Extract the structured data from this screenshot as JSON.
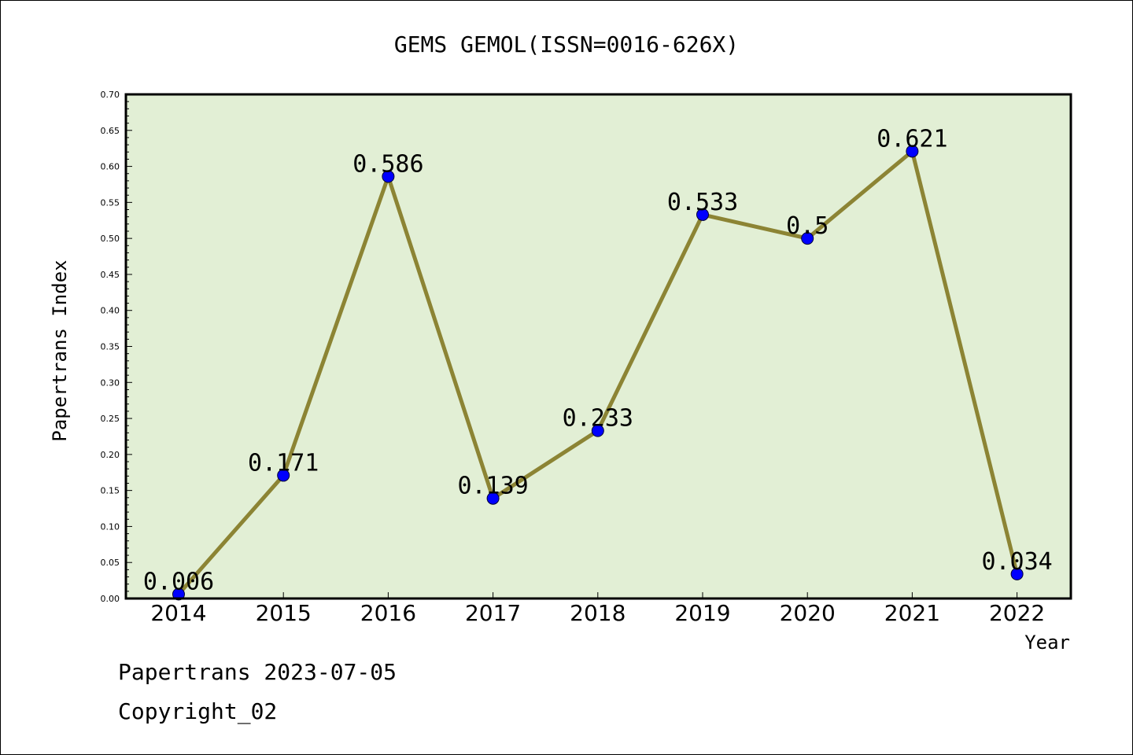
{
  "footer": {
    "line1": "Papertrans 2023-07-05",
    "line2": "Copyright_02"
  },
  "chart_data": {
    "type": "line",
    "title": "GEMS GEMOL(ISSN=0016-626X)",
    "xlabel": "Year",
    "ylabel": "Papertrans Index",
    "categories": [
      "2014",
      "2015",
      "2016",
      "2017",
      "2018",
      "2019",
      "2020",
      "2021",
      "2022"
    ],
    "values": [
      0.006,
      0.171,
      0.586,
      0.139,
      0.233,
      0.533,
      0.5,
      0.621,
      0.034
    ],
    "data_labels": [
      "0.006",
      "0.171",
      "0.586",
      "0.139",
      "0.233",
      "0.533",
      "0.5",
      "0.621",
      "0.034"
    ],
    "ylim": [
      0,
      0.7
    ],
    "yticks": [
      "0.00",
      "0.05",
      "0.10",
      "0.15",
      "0.20",
      "0.25",
      "0.30",
      "0.35",
      "0.40",
      "0.45",
      "0.50",
      "0.55",
      "0.60",
      "0.65",
      "0.70"
    ],
    "grid": false,
    "legend": "none",
    "colors": {
      "plot_background": "#e2efd5",
      "line": "#8c8434",
      "marker": "#0000ff"
    }
  }
}
